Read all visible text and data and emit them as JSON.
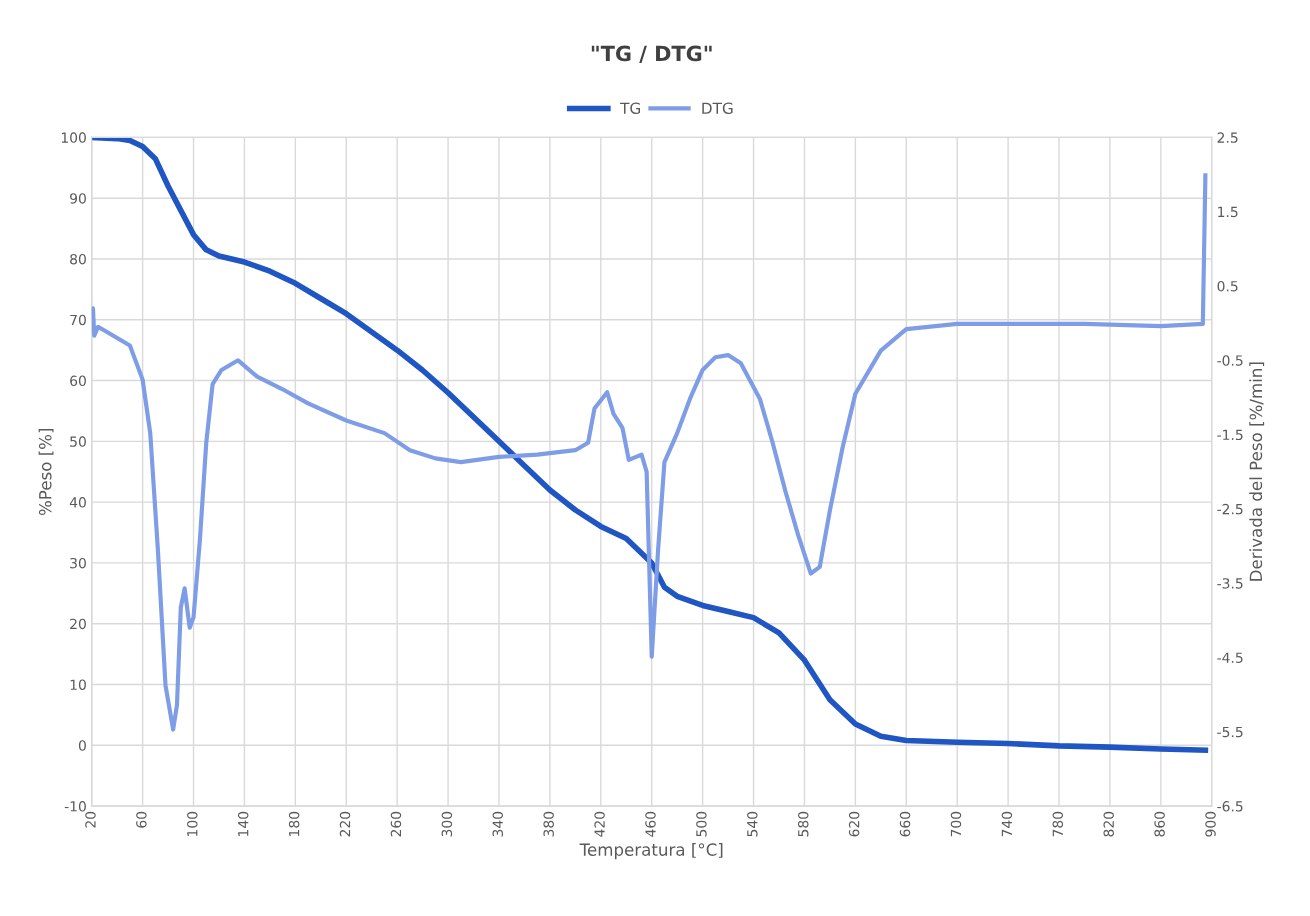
{
  "chart_data": {
    "type": "line",
    "title": "\"TG / DTG\"",
    "xlabel": "Temperatura [°C]",
    "ylabel": "%Peso [%]",
    "y2label": "Derivada del Peso [%/min]",
    "xlim": [
      20,
      900
    ],
    "xticks": [
      20,
      60,
      100,
      140,
      180,
      220,
      260,
      300,
      340,
      380,
      420,
      460,
      500,
      540,
      580,
      620,
      660,
      700,
      740,
      780,
      820,
      860,
      900
    ],
    "ylim": [
      -10,
      100
    ],
    "yticks": [
      -10,
      0,
      10,
      20,
      30,
      40,
      50,
      60,
      70,
      80,
      90,
      100
    ],
    "y2lim": [
      -6.5,
      2.5
    ],
    "y2ticks": [
      -6.5,
      -5.5,
      -4.5,
      -3.5,
      -2.5,
      -1.5,
      -0.5,
      0.5,
      1.5,
      2.5
    ],
    "grid": true,
    "legend": "top",
    "marker": "none",
    "line_style": "solid",
    "series": [
      {
        "name": "TG",
        "color": "#1f56c4",
        "x": [
          20,
          40,
          50,
          60,
          70,
          80,
          90,
          100,
          110,
          120,
          140,
          160,
          180,
          200,
          220,
          240,
          260,
          280,
          300,
          320,
          340,
          360,
          380,
          400,
          420,
          440,
          460,
          470,
          480,
          500,
          520,
          540,
          560,
          580,
          600,
          620,
          640,
          660,
          700,
          740,
          780,
          820,
          860,
          895
        ],
        "values": [
          100,
          99.8,
          99.5,
          98.5,
          96.5,
          92,
          88,
          84,
          81.5,
          80.5,
          79.5,
          78,
          76,
          73.5,
          71,
          68,
          65,
          61.7,
          58,
          54,
          50,
          46,
          42,
          38.7,
          36,
          34,
          30,
          26,
          24.5,
          23,
          22,
          21,
          18.5,
          14,
          7.5,
          3.5,
          1.5,
          0.8,
          0.5,
          0.3,
          -0.1,
          -0.3,
          -0.6,
          -0.8
        ]
      },
      {
        "name": "DTG",
        "color": "#7f9de6",
        "axis": "y2",
        "x": [
          20,
          21,
          22,
          25,
          30,
          50,
          60,
          66,
          72,
          78,
          84,
          87,
          90,
          93,
          97,
          100,
          105,
          110,
          115,
          122,
          135,
          150,
          170,
          190,
          220,
          250,
          270,
          290,
          310,
          340,
          370,
          400,
          410,
          415,
          425,
          430,
          437,
          442,
          452,
          456,
          460,
          465,
          470,
          480,
          490,
          500,
          510,
          520,
          530,
          545,
          555,
          565,
          575,
          585,
          592,
          600,
          610,
          620,
          640,
          660,
          700,
          760,
          800,
          860,
          893,
          895
        ],
        "values": [
          0.12,
          0.2,
          -0.17,
          -0.05,
          -0.1,
          -0.3,
          -0.76,
          -1.48,
          -3.05,
          -4.88,
          -5.47,
          -5.14,
          -3.83,
          -3.57,
          -4.1,
          -3.96,
          -2.92,
          -1.61,
          -0.82,
          -0.63,
          -0.5,
          -0.72,
          -0.89,
          -1.08,
          -1.31,
          -1.48,
          -1.71,
          -1.82,
          -1.87,
          -1.8,
          -1.77,
          -1.71,
          -1.61,
          -1.15,
          -0.93,
          -1.22,
          -1.41,
          -1.84,
          -1.77,
          -2.0,
          -4.49,
          -3.05,
          -1.87,
          -1.48,
          -1.02,
          -0.63,
          -0.46,
          -0.43,
          -0.54,
          -1.02,
          -1.61,
          -2.26,
          -2.85,
          -3.37,
          -3.28,
          -2.52,
          -1.67,
          -0.95,
          -0.37,
          -0.08,
          -0.01,
          -0.01,
          -0.01,
          -0.04,
          -0.01,
          1.99
        ]
      }
    ]
  }
}
